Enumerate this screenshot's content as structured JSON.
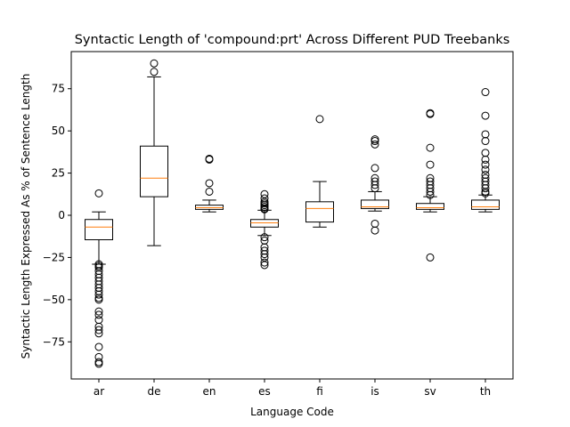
{
  "chart_data": {
    "type": "box",
    "title": "Syntactic Length of 'compound:prt' Across Different PUD Treebanks",
    "xlabel": "Language Code",
    "ylabel": "Syntactic Length Expressed As % of Sentence Length",
    "ylim": [
      -97,
      97
    ],
    "yticks": [
      75,
      50,
      25,
      0,
      -25,
      -50,
      -75
    ],
    "grid": false,
    "colors": {
      "box": "#000000",
      "median": "#ff7f0e",
      "flier": "#000000"
    },
    "categories": [
      "ar",
      "de",
      "en",
      "es",
      "fi",
      "is",
      "sv",
      "th"
    ],
    "boxes": [
      {
        "label": "ar",
        "whisker_low": -29,
        "q1": -14.5,
        "median": -7,
        "q3": -2.5,
        "whisker_high": 2,
        "fliers": [
          13,
          -29,
          -30,
          -31,
          -33,
          -35,
          -37,
          -39,
          -41,
          -43,
          -45,
          -47,
          -49,
          -50,
          -57,
          -59,
          -62,
          -66,
          -68,
          -70,
          -78,
          -84,
          -87,
          -88
        ]
      },
      {
        "label": "de",
        "whisker_low": -18,
        "q1": 11,
        "median": 22,
        "q3": 41,
        "whisker_high": 82,
        "fliers": [
          85,
          90
        ]
      },
      {
        "label": "en",
        "whisker_low": 2,
        "q1": 3.5,
        "median": 4.5,
        "q3": 6,
        "whisker_high": 9,
        "fliers": [
          14,
          19,
          33,
          33.5
        ]
      },
      {
        "label": "es",
        "whisker_low": -12,
        "q1": -7,
        "median": -4.5,
        "q3": -2.5,
        "whisker_high": 3,
        "fliers": [
          3.5,
          4,
          5,
          6,
          7,
          8,
          10,
          12.5,
          -13,
          -15,
          -19,
          -21,
          -23,
          -25,
          -28,
          -29.5
        ]
      },
      {
        "label": "fi",
        "whisker_low": -7,
        "q1": -4,
        "median": 4,
        "q3": 8,
        "whisker_high": 20,
        "fliers": [
          57
        ]
      },
      {
        "label": "is",
        "whisker_low": 2.5,
        "q1": 4,
        "median": 5,
        "q3": 9,
        "whisker_high": 14,
        "fliers": [
          16,
          18,
          20,
          22,
          28,
          42,
          44,
          45,
          -5,
          -9
        ]
      },
      {
        "label": "sv",
        "whisker_low": 2,
        "q1": 3.5,
        "median": 4.5,
        "q3": 7,
        "whisker_high": 11,
        "fliers": [
          12,
          14,
          16,
          18,
          20,
          22,
          30,
          40,
          60,
          60.5,
          -25
        ]
      },
      {
        "label": "th",
        "whisker_low": 2,
        "q1": 3.5,
        "median": 5,
        "q3": 9,
        "whisker_high": 12,
        "fliers": [
          13,
          14,
          16,
          18,
          20,
          22,
          24,
          27,
          30,
          33,
          37,
          44,
          48,
          59,
          73
        ]
      }
    ]
  }
}
